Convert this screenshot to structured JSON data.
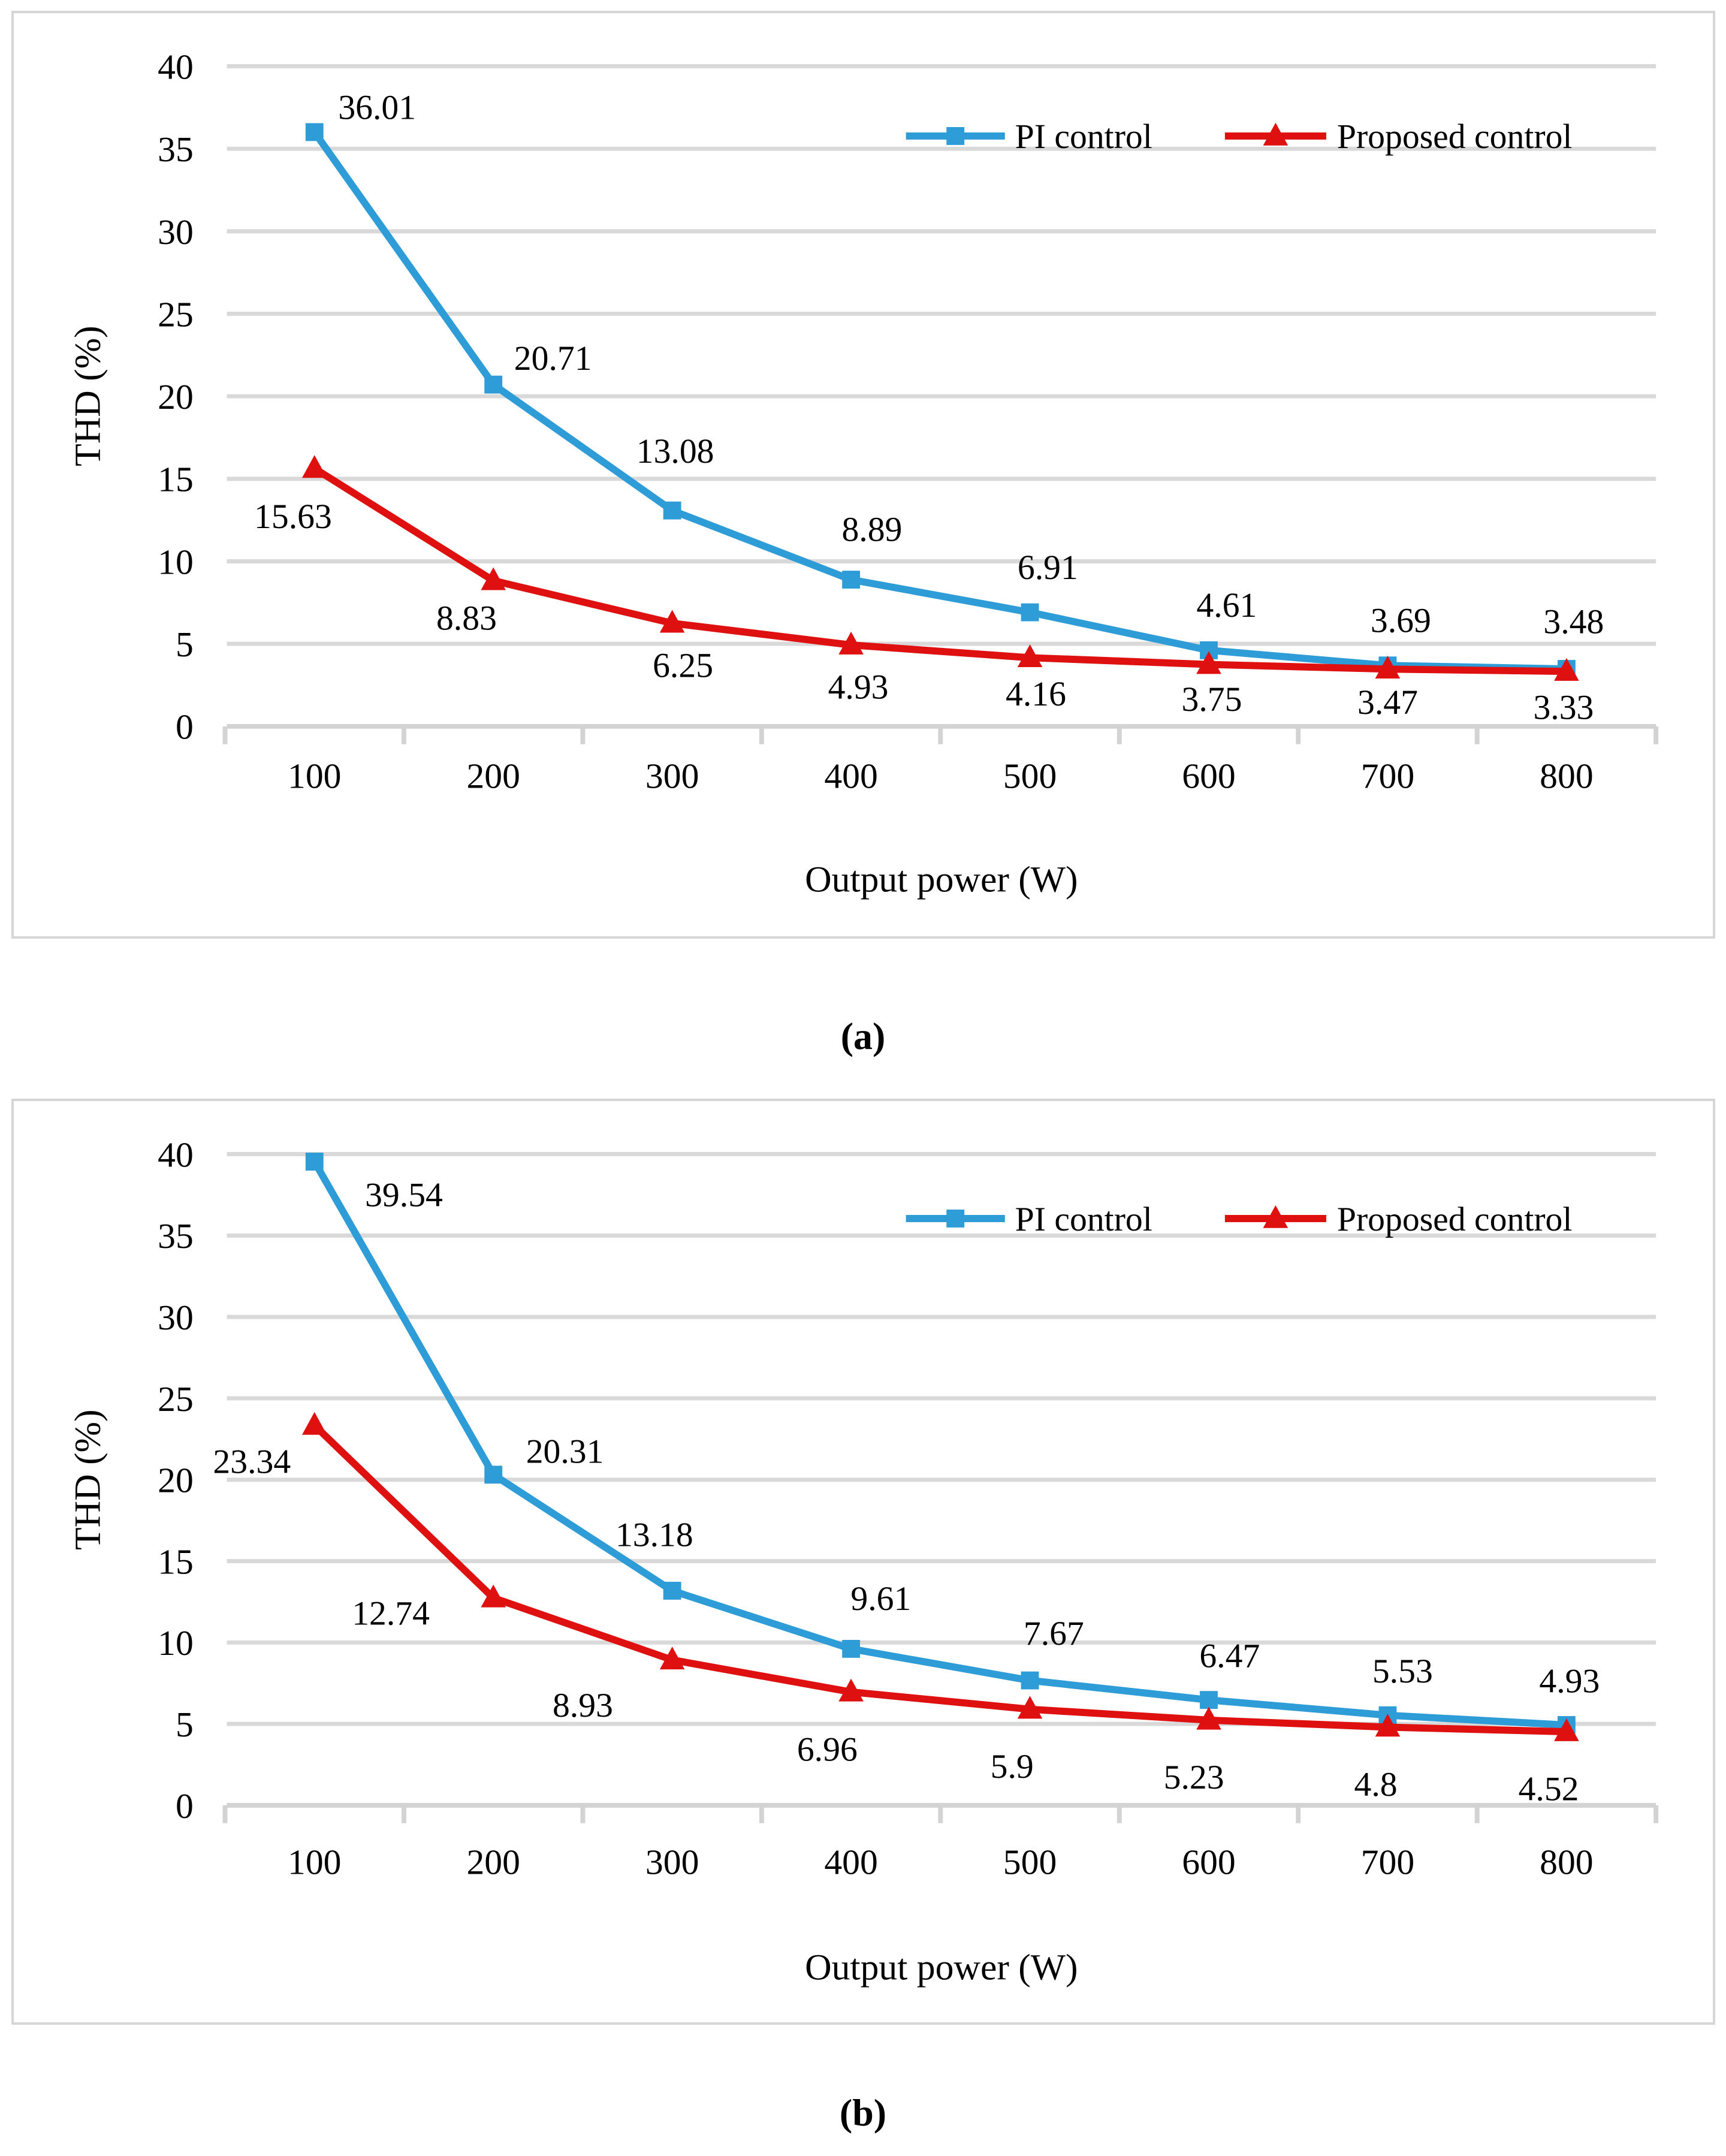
{
  "figure": {
    "caption_a": "(a)",
    "caption_b": "(b)"
  },
  "colors": {
    "pi_series": "#2e9cd6",
    "proposed_series": "#df1010",
    "gridline": "#d9d9d9",
    "axis": "#d3d3d3",
    "text": "#000000"
  },
  "chart_data": [
    {
      "id": "a",
      "type": "line",
      "title": "",
      "xlabel": "Output power (W)",
      "ylabel": "THD (%)",
      "categories": [
        100,
        200,
        300,
        400,
        500,
        600,
        700,
        800
      ],
      "ylim": [
        0,
        40
      ],
      "yticks": [
        "0",
        "5",
        "10",
        "15",
        "20",
        "25",
        "30",
        "35",
        "40"
      ],
      "grid": true,
      "legend_position": "top-right-inside",
      "series": [
        {
          "name": "PI control",
          "color": "#2e9cd6",
          "marker": "square",
          "values": [
            36.01,
            20.71,
            13.08,
            8.89,
            6.91,
            4.61,
            3.69,
            3.48
          ],
          "labels": [
            "36.01",
            "20.71",
            "13.08",
            "8.89",
            "6.91",
            "4.61",
            "3.69",
            "3.48"
          ],
          "label_offsets": [
            [
              105,
              -42
            ],
            [
              100,
              -45
            ],
            [
              5,
              -100
            ],
            [
              35,
              -85
            ],
            [
              30,
              -76
            ],
            [
              30,
              -76
            ],
            [
              22,
              -76
            ],
            [
              12,
              -80
            ]
          ]
        },
        {
          "name": "Proposed control",
          "color": "#df1010",
          "marker": "triangle",
          "values": [
            15.63,
            8.83,
            6.25,
            4.93,
            4.16,
            3.75,
            3.47,
            3.33
          ],
          "labels": [
            "15.63",
            "8.83",
            "6.25",
            "4.93",
            "4.16",
            "3.75",
            "3.47",
            "3.33"
          ],
          "label_offsets": [
            [
              -36,
              80
            ],
            [
              -45,
              62
            ],
            [
              18,
              70
            ],
            [
              12,
              70
            ],
            [
              10,
              60
            ],
            [
              5,
              58
            ],
            [
              0,
              55
            ],
            [
              -5,
              60
            ]
          ]
        }
      ]
    },
    {
      "id": "b",
      "type": "line",
      "title": "",
      "xlabel": "Output power (W)",
      "ylabel": "THD (%)",
      "categories": [
        100,
        200,
        300,
        400,
        500,
        600,
        700,
        800
      ],
      "ylim": [
        0,
        40
      ],
      "yticks": [
        "0",
        "5",
        "10",
        "15",
        "20",
        "25",
        "30",
        "35",
        "40"
      ],
      "grid": true,
      "legend_position": "top-right-inside",
      "series": [
        {
          "name": "PI control",
          "color": "#2e9cd6",
          "marker": "square",
          "values": [
            39.54,
            20.31,
            13.18,
            9.61,
            7.67,
            6.47,
            5.53,
            4.93
          ],
          "labels": [
            "39.54",
            "20.31",
            "13.18",
            "9.61",
            "7.67",
            "6.47",
            "5.53",
            "4.93"
          ],
          "label_offsets": [
            [
              150,
              55
            ],
            [
              120,
              -40
            ],
            [
              -30,
              -95
            ],
            [
              50,
              -85
            ],
            [
              40,
              -80
            ],
            [
              35,
              -75
            ],
            [
              25,
              -75
            ],
            [
              5,
              -75
            ]
          ]
        },
        {
          "name": "Proposed control",
          "color": "#df1010",
          "marker": "triangle",
          "values": [
            23.34,
            12.74,
            8.93,
            6.96,
            5.9,
            5.23,
            4.8,
            4.52
          ],
          "labels": [
            "23.34",
            "12.74",
            "8.93",
            "6.96",
            "5.9",
            "5.23",
            "4.8",
            "4.52"
          ],
          "label_offsets": [
            [
              -105,
              60
            ],
            [
              -172,
              25
            ],
            [
              -150,
              75
            ],
            [
              -40,
              95
            ],
            [
              -30,
              95
            ],
            [
              -25,
              95
            ],
            [
              -20,
              95
            ],
            [
              -30,
              95
            ]
          ]
        }
      ]
    }
  ]
}
